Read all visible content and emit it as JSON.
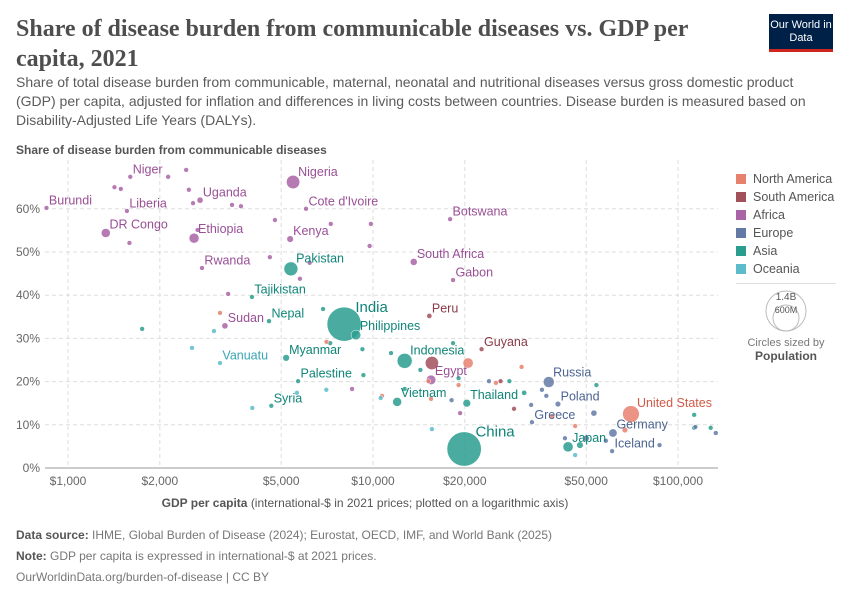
{
  "header": {
    "title": "Share of disease burden from communicable diseases vs. GDP per capita, 2021",
    "subtitle": "Share of total disease burden from communicable, maternal, neonatal and nutritional diseases versus gross domestic product (GDP) per capita, adjusted for inflation and differences in living costs between countries. Disease burden is measured based on Disability-Adjusted Life Years (DALYs).",
    "logo": "Our World in Data"
  },
  "legend": {
    "items": [
      {
        "label": "North America",
        "color": "#E8806E"
      },
      {
        "label": "South America",
        "color": "#A1505C"
      },
      {
        "label": "Africa",
        "color": "#A964A6"
      },
      {
        "label": "Europe",
        "color": "#6379A6"
      },
      {
        "label": "Asia",
        "color": "#2A9D8F"
      },
      {
        "label": "Oceania",
        "color": "#5CBCCB"
      }
    ],
    "size_big": "1.4B",
    "size_small": "600M",
    "size_caption": "Circles sized by",
    "size_variable": "Population"
  },
  "footer": {
    "source_label": "Data source:",
    "source": "IHME, Global Burden of Disease (2024); Eurostat, OECD, IMF, and World Bank (2025)",
    "note_label": "Note:",
    "note": "GDP per capita is expressed in international-$ at 2021 prices.",
    "url": "OurWorldinData.org/burden-of-disease | CC BY"
  },
  "chart_data": {
    "type": "scatter",
    "ylabel": "Share of disease burden from communicable diseases",
    "xlabel_bold": "GDP per capita",
    "xlabel_rest": "(international-$ in 2021 prices; plotted on a logarithmic axis)",
    "xscale": "log",
    "xlim": [
      840,
      135000
    ],
    "ylim": [
      0,
      70
    ],
    "grid": true,
    "legend": "right",
    "xticks": [
      {
        "v": 1000,
        "label": "$1,000"
      },
      {
        "v": 2000,
        "label": "$2,000"
      },
      {
        "v": 5000,
        "label": "$5,000"
      },
      {
        "v": 10000,
        "label": "$10,000"
      },
      {
        "v": 20000,
        "label": "$20,000"
      },
      {
        "v": 50000,
        "label": "$50,000"
      },
      {
        "v": 100000,
        "label": "$100,000"
      }
    ],
    "yticks": [
      {
        "v": 0,
        "label": "0%"
      },
      {
        "v": 10,
        "label": "10%"
      },
      {
        "v": 20,
        "label": "20%"
      },
      {
        "v": 30,
        "label": "30%"
      },
      {
        "v": 40,
        "label": "40%"
      },
      {
        "v": 50,
        "label": "50%"
      },
      {
        "v": 60,
        "label": "60%"
      }
    ],
    "points": [
      {
        "label": "Burundi",
        "region": "Africa",
        "gdp": 850,
        "share": 60.2,
        "pop": 12
      },
      {
        "label": "Niger",
        "region": "Africa",
        "gdp": 1600,
        "share": 67.4,
        "pop": 25
      },
      {
        "label": "Liberia",
        "region": "Africa",
        "gdp": 1560,
        "share": 59.5,
        "pop": 5
      },
      {
        "label": "DR Congo",
        "region": "Africa",
        "gdp": 1330,
        "share": 54.4,
        "pop": 99
      },
      {
        "label": "Uganda",
        "region": "Africa",
        "gdp": 2710,
        "share": 62.0,
        "pop": 46
      },
      {
        "label": "Ethiopia",
        "region": "Africa",
        "gdp": 2590,
        "share": 53.2,
        "pop": 120
      },
      {
        "label": "Rwanda",
        "region": "Africa",
        "gdp": 2750,
        "share": 46.3,
        "pop": 13
      },
      {
        "label": "Nigeria",
        "region": "Africa",
        "gdp": 5470,
        "share": 66.2,
        "pop": 218
      },
      {
        "label": "Cote d'Ivoire",
        "region": "Africa",
        "gdp": 6030,
        "share": 60.0,
        "pop": 28
      },
      {
        "label": "Kenya",
        "region": "Africa",
        "gdp": 5350,
        "share": 53.0,
        "pop": 53
      },
      {
        "label": "Botswana",
        "region": "Africa",
        "gdp": 17900,
        "share": 57.6,
        "pop": 2.6
      },
      {
        "label": "South Africa",
        "region": "Africa",
        "gdp": 13600,
        "share": 47.7,
        "pop": 60
      },
      {
        "label": "Gabon",
        "region": "Africa",
        "gdp": 18300,
        "share": 43.5,
        "pop": 2.3
      },
      {
        "label": "Sudan",
        "region": "Africa",
        "gdp": 3270,
        "share": 32.9,
        "pop": 46
      },
      {
        "label": "Egypt",
        "region": "Africa",
        "gdp": 15500,
        "share": 20.4,
        "pop": 110
      },
      {
        "label": "Pakistan",
        "region": "Asia",
        "gdp": 5380,
        "share": 46.1,
        "pop": 236
      },
      {
        "label": "Tajikistan",
        "region": "Asia",
        "gdp": 4010,
        "share": 39.6,
        "pop": 10
      },
      {
        "label": "Nepal",
        "region": "Asia",
        "gdp": 4560,
        "share": 34.0,
        "pop": 30
      },
      {
        "label": "India",
        "region": "Asia",
        "gdp": 8040,
        "share": 33.3,
        "pop": 1410
      },
      {
        "label": "Philippines",
        "region": "Asia",
        "gdp": 8790,
        "share": 30.8,
        "pop": 114
      },
      {
        "label": "Myanmar",
        "region": "Asia",
        "gdp": 5190,
        "share": 25.5,
        "pop": 54
      },
      {
        "label": "Indonesia",
        "region": "Asia",
        "gdp": 12700,
        "share": 24.8,
        "pop": 274
      },
      {
        "label": "Palestine",
        "region": "Asia",
        "gdp": 5680,
        "share": 20.1,
        "pop": 5
      },
      {
        "label": "Syria",
        "region": "Asia",
        "gdp": 4640,
        "share": 14.4,
        "pop": 21
      },
      {
        "label": "Vietnam",
        "region": "Asia",
        "gdp": 12000,
        "share": 15.3,
        "pop": 98
      },
      {
        "label": "Thailand",
        "region": "Asia",
        "gdp": 20300,
        "share": 15.0,
        "pop": 72
      },
      {
        "label": "China",
        "region": "Asia",
        "gdp": 19900,
        "share": 4.4,
        "pop": 1426
      },
      {
        "label": "Japan",
        "region": "Asia",
        "gdp": 43600,
        "share": 4.9,
        "pop": 125
      },
      {
        "label": "Peru",
        "region": "South America",
        "gdp": 15300,
        "share": 35.2,
        "pop": 33
      },
      {
        "label": "Guyana",
        "region": "South America",
        "gdp": 22700,
        "share": 27.5,
        "pop": 0.8
      },
      {
        "label": "Vanuatu",
        "region": "Oceania",
        "gdp": 3150,
        "share": 24.3,
        "pop": 0.3
      },
      {
        "label": "Russia",
        "region": "Europe",
        "gdp": 37700,
        "share": 19.9,
        "pop": 145
      },
      {
        "label": "Poland",
        "region": "Europe",
        "gdp": 40400,
        "share": 14.8,
        "pop": 38
      },
      {
        "label": "Greece",
        "region": "Europe",
        "gdp": 33200,
        "share": 10.6,
        "pop": 10
      },
      {
        "label": "Germany",
        "region": "Europe",
        "gdp": 61200,
        "share": 8.1,
        "pop": 83
      },
      {
        "label": "Iceland",
        "region": "Europe",
        "gdp": 60800,
        "share": 3.9,
        "pop": 0.4
      },
      {
        "label": "United States",
        "region": "North America",
        "gdp": 70100,
        "share": 12.5,
        "pop": 337
      },
      {
        "region": "Africa",
        "gdp": 1420,
        "share": 65.0,
        "pop": 10
      },
      {
        "region": "Africa",
        "gdp": 1490,
        "share": 64.6,
        "pop": 18
      },
      {
        "region": "Africa",
        "gdp": 2130,
        "share": 67.4,
        "pop": 5
      },
      {
        "region": "Africa",
        "gdp": 2440,
        "share": 69.0,
        "pop": 5
      },
      {
        "region": "Africa",
        "gdp": 2490,
        "share": 64.4,
        "pop": 10
      },
      {
        "region": "Africa",
        "gdp": 2570,
        "share": 61.3,
        "pop": 10
      },
      {
        "region": "Africa",
        "gdp": 3450,
        "share": 60.9,
        "pop": 5
      },
      {
        "region": "Africa",
        "gdp": 3690,
        "share": 60.6,
        "pop": 5
      },
      {
        "region": "Africa",
        "gdp": 1590,
        "share": 52.1,
        "pop": 10
      },
      {
        "region": "Africa",
        "gdp": 2660,
        "share": 55.1,
        "pop": 8
      },
      {
        "region": "Africa",
        "gdp": 4770,
        "share": 57.4,
        "pop": 10
      },
      {
        "region": "Africa",
        "gdp": 9840,
        "share": 56.5,
        "pop": 2
      },
      {
        "region": "Africa",
        "gdp": 9750,
        "share": 51.4,
        "pop": 2
      },
      {
        "region": "Africa",
        "gdp": 7270,
        "share": 56.5,
        "pop": 18
      },
      {
        "region": "Africa",
        "gdp": 6200,
        "share": 47.5,
        "pop": 8
      },
      {
        "region": "Africa",
        "gdp": 5760,
        "share": 43.8,
        "pop": 6
      },
      {
        "region": "Africa",
        "gdp": 4590,
        "share": 48.8,
        "pop": 5
      },
      {
        "region": "Africa",
        "gdp": 3350,
        "share": 40.3,
        "pop": 5
      },
      {
        "region": "Africa",
        "gdp": 8540,
        "share": 18.3,
        "pop": 18
      },
      {
        "region": "Africa",
        "gdp": 19300,
        "share": 12.7,
        "pop": 5
      },
      {
        "region": "Asia",
        "gdp": 1750,
        "share": 32.2,
        "pop": 25
      },
      {
        "region": "Asia",
        "gdp": 6860,
        "share": 36.8,
        "pop": 5
      },
      {
        "region": "Asia",
        "gdp": 7240,
        "share": 28.9,
        "pop": 5
      },
      {
        "region": "Asia",
        "gdp": 11460,
        "share": 26.6,
        "pop": 5
      },
      {
        "region": "Asia",
        "gdp": 18300,
        "share": 28.9,
        "pop": 3
      },
      {
        "region": "Asia",
        "gdp": 9230,
        "share": 27.5,
        "pop": 5
      },
      {
        "region": "Asia",
        "gdp": 9300,
        "share": 21.5,
        "pop": 8
      },
      {
        "region": "Asia",
        "gdp": 12700,
        "share": 18.3,
        "pop": 5
      },
      {
        "region": "Asia",
        "gdp": 14300,
        "share": 22.7,
        "pop": 20
      },
      {
        "region": "Asia",
        "gdp": 19080,
        "share": 20.8,
        "pop": 5
      },
      {
        "region": "Asia",
        "gdp": 28000,
        "share": 20.1,
        "pop": 10
      },
      {
        "region": "Asia",
        "gdp": 31300,
        "share": 17.4,
        "pop": 33
      },
      {
        "region": "Asia",
        "gdp": 54000,
        "share": 19.2,
        "pop": 4
      },
      {
        "region": "Asia",
        "gdp": 113000,
        "share": 12.3,
        "pop": 4
      },
      {
        "region": "Asia",
        "gdp": 113000,
        "share": 9.3,
        "pop": 4
      },
      {
        "region": "Asia",
        "gdp": 128000,
        "share": 9.3,
        "pop": 3
      },
      {
        "region": "Asia",
        "gdp": 47700,
        "share": 5.3,
        "pop": 52
      },
      {
        "region": "Europe",
        "gdp": 35800,
        "share": 18.1,
        "pop": 10
      },
      {
        "region": "Europe",
        "gdp": 33000,
        "share": 14.6,
        "pop": 5
      },
      {
        "region": "Europe",
        "gdp": 37000,
        "share": 16.7,
        "pop": 5
      },
      {
        "region": "Europe",
        "gdp": 53000,
        "share": 12.7,
        "pop": 45
      },
      {
        "region": "Europe",
        "gdp": 42600,
        "share": 6.9,
        "pop": 20
      },
      {
        "region": "Europe",
        "gdp": 50000,
        "share": 6.9,
        "pop": 45
      },
      {
        "region": "Europe",
        "gdp": 58000,
        "share": 6.3,
        "pop": 10
      },
      {
        "region": "Europe",
        "gdp": 87000,
        "share": 5.3,
        "pop": 5
      },
      {
        "region": "Europe",
        "gdp": 114000,
        "share": 9.5,
        "pop": 5
      },
      {
        "region": "Europe",
        "gdp": 133000,
        "share": 8.1,
        "pop": 5
      },
      {
        "region": "Europe",
        "gdp": 18100,
        "share": 15.7,
        "pop": 5
      },
      {
        "region": "Europe",
        "gdp": 24000,
        "share": 20.1,
        "pop": 5
      },
      {
        "region": "North America",
        "gdp": 3150,
        "share": 35.9,
        "pop": 5
      },
      {
        "region": "North America",
        "gdp": 7040,
        "share": 29.2,
        "pop": 5
      },
      {
        "region": "North America",
        "gdp": 10700,
        "share": 16.7,
        "pop": 5
      },
      {
        "region": "North America",
        "gdp": 15200,
        "share": 20.1,
        "pop": 5
      },
      {
        "region": "North America",
        "gdp": 15500,
        "share": 16.0,
        "pop": 5
      },
      {
        "region": "North America",
        "gdp": 19080,
        "share": 19.2,
        "pop": 5
      },
      {
        "region": "North America",
        "gdp": 25300,
        "share": 19.7,
        "pop": 5
      },
      {
        "region": "North America",
        "gdp": 30700,
        "share": 23.4,
        "pop": 3
      },
      {
        "region": "North America",
        "gdp": 38700,
        "share": 12.0,
        "pop": 3
      },
      {
        "region": "North America",
        "gdp": 46000,
        "share": 9.7,
        "pop": 3
      },
      {
        "region": "North America",
        "gdp": 67000,
        "share": 8.8,
        "pop": 39
      },
      {
        "region": "North America",
        "gdp": 20500,
        "share": 24.3,
        "pop": 128
      },
      {
        "region": "South America",
        "gdp": 15600,
        "share": 24.3,
        "pop": 215
      },
      {
        "region": "South America",
        "gdp": 26200,
        "share": 20.1,
        "pop": 19
      },
      {
        "region": "South America",
        "gdp": 29000,
        "share": 13.7,
        "pop": 3
      },
      {
        "region": "Oceania",
        "gdp": 3010,
        "share": 31.7,
        "pop": 1
      },
      {
        "region": "Oceania",
        "gdp": 2550,
        "share": 27.8,
        "pop": 1
      },
      {
        "region": "Oceania",
        "gdp": 4020,
        "share": 13.9,
        "pop": 1
      },
      {
        "region": "Oceania",
        "gdp": 5630,
        "share": 17.4,
        "pop": 1
      },
      {
        "region": "Oceania",
        "gdp": 7030,
        "share": 18.1,
        "pop": 1
      },
      {
        "region": "Oceania",
        "gdp": 15600,
        "share": 9.0,
        "pop": 1
      },
      {
        "region": "Oceania",
        "gdp": 10600,
        "share": 16.2,
        "pop": 1
      },
      {
        "region": "Oceania",
        "gdp": 46000,
        "share": 3.0,
        "pop": 5
      }
    ]
  }
}
